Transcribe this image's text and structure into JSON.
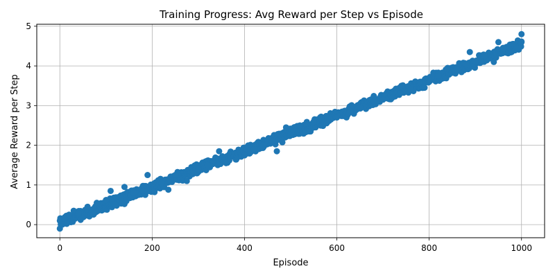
{
  "chart_data": {
    "type": "scatter",
    "title": "Training Progress: Avg Reward per Step vs Episode",
    "xlabel": "Episode",
    "ylabel": "Average Reward per Step",
    "xlim": [
      -50,
      1050
    ],
    "ylim": [
      -0.33,
      5.05
    ],
    "xticks": [
      0,
      200,
      400,
      600,
      800,
      1000
    ],
    "yticks": [
      0,
      1,
      2,
      3,
      4,
      5
    ],
    "grid": true,
    "point_color": "#1f77b4",
    "trend": {
      "x_start": 0,
      "y_start": 0.05,
      "x_end": 1000,
      "y_end": 4.55
    },
    "noise_amplitude": 0.1,
    "points": [
      [
        0,
        0.1
      ],
      [
        5,
        0.0
      ],
      [
        10,
        0.15
      ],
      [
        15,
        0.02
      ],
      [
        20,
        0.25
      ],
      [
        30,
        0.35
      ],
      [
        40,
        0.3
      ],
      [
        45,
        0.12
      ],
      [
        60,
        0.45
      ],
      [
        80,
        0.55
      ],
      [
        100,
        0.62
      ],
      [
        110,
        0.85
      ],
      [
        120,
        0.5
      ],
      [
        140,
        0.95
      ],
      [
        140,
        0.52
      ],
      [
        160,
        0.8
      ],
      [
        180,
        0.85
      ],
      [
        190,
        1.25
      ],
      [
        205,
        0.82
      ],
      [
        220,
        1.05
      ],
      [
        235,
        0.88
      ],
      [
        250,
        1.25
      ],
      [
        275,
        1.1
      ],
      [
        300,
        1.4
      ],
      [
        320,
        1.5
      ],
      [
        345,
        1.85
      ],
      [
        360,
        1.55
      ],
      [
        400,
        1.75
      ],
      [
        420,
        1.9
      ],
      [
        440,
        2.0
      ],
      [
        460,
        2.1
      ],
      [
        470,
        1.85
      ],
      [
        490,
        2.45
      ],
      [
        500,
        2.25
      ],
      [
        520,
        2.5
      ],
      [
        540,
        2.35
      ],
      [
        550,
        2.6
      ],
      [
        580,
        2.7
      ],
      [
        600,
        2.7
      ],
      [
        630,
        2.85
      ],
      [
        650,
        2.95
      ],
      [
        680,
        3.1
      ],
      [
        700,
        3.15
      ],
      [
        720,
        3.2
      ],
      [
        740,
        3.5
      ],
      [
        760,
        3.4
      ],
      [
        780,
        3.6
      ],
      [
        790,
        3.45
      ],
      [
        800,
        3.6
      ],
      [
        820,
        3.75
      ],
      [
        840,
        3.95
      ],
      [
        860,
        3.9
      ],
      [
        880,
        4.05
      ],
      [
        888,
        4.35
      ],
      [
        900,
        4.1
      ],
      [
        920,
        4.25
      ],
      [
        940,
        4.1
      ],
      [
        950,
        4.6
      ],
      [
        960,
        4.45
      ],
      [
        980,
        4.55
      ],
      [
        990,
        4.45
      ],
      [
        1000,
        4.8
      ],
      [
        1000,
        4.6
      ]
    ]
  }
}
